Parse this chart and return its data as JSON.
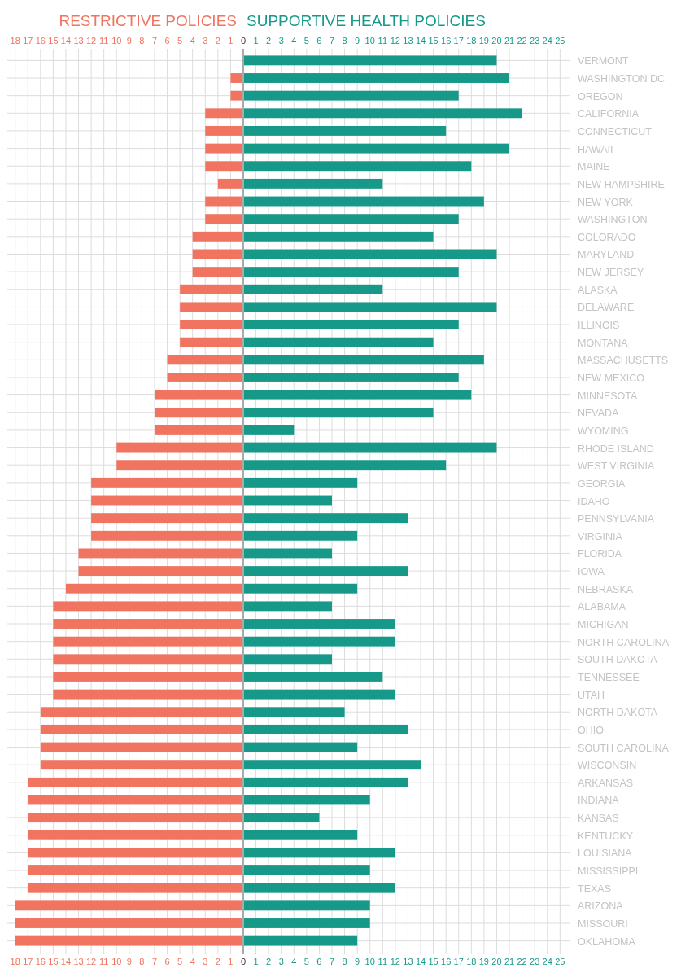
{
  "chart_data": {
    "type": "bar",
    "orientation": "horizontal",
    "legend": "top",
    "grid": true,
    "stacked": true,
    "categories": [
      "VERMONT",
      "WASHINGTON DC",
      "OREGON",
      "CALIFORNIA",
      "CONNECTICUT",
      "HAWAII",
      "MAINE",
      "NEW HAMPSHIRE",
      "NEW YORK",
      "WASHINGTON",
      "COLORADO",
      "MARYLAND",
      "NEW JERSEY",
      "ALASKA",
      "DELAWARE",
      "ILLINOIS",
      "MONTANA",
      "MASSACHUSETTS",
      "NEW MEXICO",
      "MINNESOTA",
      "NEVADA",
      "WYOMING",
      "RHODE ISLAND",
      "WEST VIRGINIA",
      "GEORGIA",
      "IDAHO",
      "PENNSYLVANIA",
      "VIRGINIA",
      "FLORIDA",
      "IOWA",
      "NEBRASKA",
      "ALABAMA",
      "MICHIGAN",
      "NORTH CAROLINA",
      "SOUTH DAKOTA",
      "TENNESSEE",
      "UTAH",
      "NORTH DAKOTA",
      "OHIO",
      "SOUTH CAROLINA",
      "WISCONSIN",
      "ARKANSAS",
      "INDIANA",
      "KANSAS",
      "KENTUCKY",
      "LOUISIANA",
      "MISSISSIPPI",
      "TEXAS",
      "ARIZONA",
      "MISSOURI",
      "OKLAHOMA"
    ],
    "series": [
      {
        "name": "RESTRICTIVE POLICIES",
        "color": "#f07460",
        "values": [
          0,
          -1,
          -1,
          -3,
          -3,
          -3,
          -3,
          -2,
          -3,
          -3,
          -4,
          -4,
          -4,
          -5,
          -5,
          -5,
          -5,
          -6,
          -6,
          -7,
          -7,
          -7,
          -10,
          -10,
          -12,
          -12,
          -12,
          -12,
          -13,
          -13,
          -14,
          -15,
          -15,
          -15,
          -15,
          -15,
          -15,
          -16,
          -16,
          -16,
          -16,
          -17,
          -17,
          -17,
          -17,
          -17,
          -17,
          -17,
          -18,
          -18,
          -18
        ]
      },
      {
        "name": "SUPPORTIVE HEALTH POLICIES",
        "color": "#17998a",
        "values": [
          20,
          21,
          17,
          22,
          16,
          21,
          18,
          11,
          19,
          17,
          15,
          20,
          17,
          11,
          20,
          17,
          15,
          19,
          17,
          18,
          15,
          4,
          20,
          16,
          9,
          7,
          13,
          9,
          7,
          13,
          9,
          7,
          12,
          12,
          7,
          11,
          12,
          8,
          13,
          9,
          14,
          13,
          10,
          6,
          9,
          12,
          10,
          12,
          10,
          10,
          9
        ]
      }
    ],
    "xlim": [
      -18.75,
      25.75
    ],
    "xticks": [
      {
        "value": -18,
        "label": "18"
      },
      {
        "value": -17,
        "label": "17"
      },
      {
        "value": -16,
        "label": "16"
      },
      {
        "value": -15,
        "label": "15"
      },
      {
        "value": -14,
        "label": "14"
      },
      {
        "value": -13,
        "label": "13"
      },
      {
        "value": -12,
        "label": "12"
      },
      {
        "value": -11,
        "label": "11"
      },
      {
        "value": -10,
        "label": "10"
      },
      {
        "value": -9,
        "label": "9"
      },
      {
        "value": -8,
        "label": "8"
      },
      {
        "value": -7,
        "label": "7"
      },
      {
        "value": -6,
        "label": "6"
      },
      {
        "value": -5,
        "label": "5"
      },
      {
        "value": -4,
        "label": "4"
      },
      {
        "value": -3,
        "label": "3"
      },
      {
        "value": -2,
        "label": "2"
      },
      {
        "value": -1,
        "label": "1"
      },
      0,
      1,
      2,
      3,
      4,
      5,
      6,
      7,
      8,
      9,
      10,
      11,
      12,
      13,
      14,
      15,
      16,
      17,
      18,
      19,
      20,
      21,
      22,
      23,
      24,
      25
    ],
    "x2lim": [
      -18.75,
      25.75
    ],
    "x2ticks": [
      {
        "value": -18,
        "label": "18"
      },
      {
        "value": -17,
        "label": "17"
      },
      {
        "value": -16,
        "label": "16"
      },
      {
        "value": -15,
        "label": "15"
      },
      {
        "value": -14,
        "label": "14"
      },
      {
        "value": -13,
        "label": "13"
      },
      {
        "value": -12,
        "label": "12"
      },
      {
        "value": -11,
        "label": "11"
      },
      {
        "value": -10,
        "label": "10"
      },
      {
        "value": -9,
        "label": "9"
      },
      {
        "value": -8,
        "label": "8"
      },
      {
        "value": -7,
        "label": "7"
      },
      {
        "value": -6,
        "label": "6"
      },
      {
        "value": -5,
        "label": "5"
      },
      {
        "value": -4,
        "label": "4"
      },
      {
        "value": -3,
        "label": "3"
      },
      {
        "value": -2,
        "label": "2"
      },
      {
        "value": -1,
        "label": "1"
      },
      0,
      1,
      2,
      3,
      4,
      5,
      6,
      7,
      8,
      9,
      10,
      11,
      12,
      13,
      14,
      15,
      16,
      17,
      18,
      19,
      20,
      21,
      22,
      23,
      24,
      25
    ]
  }
}
